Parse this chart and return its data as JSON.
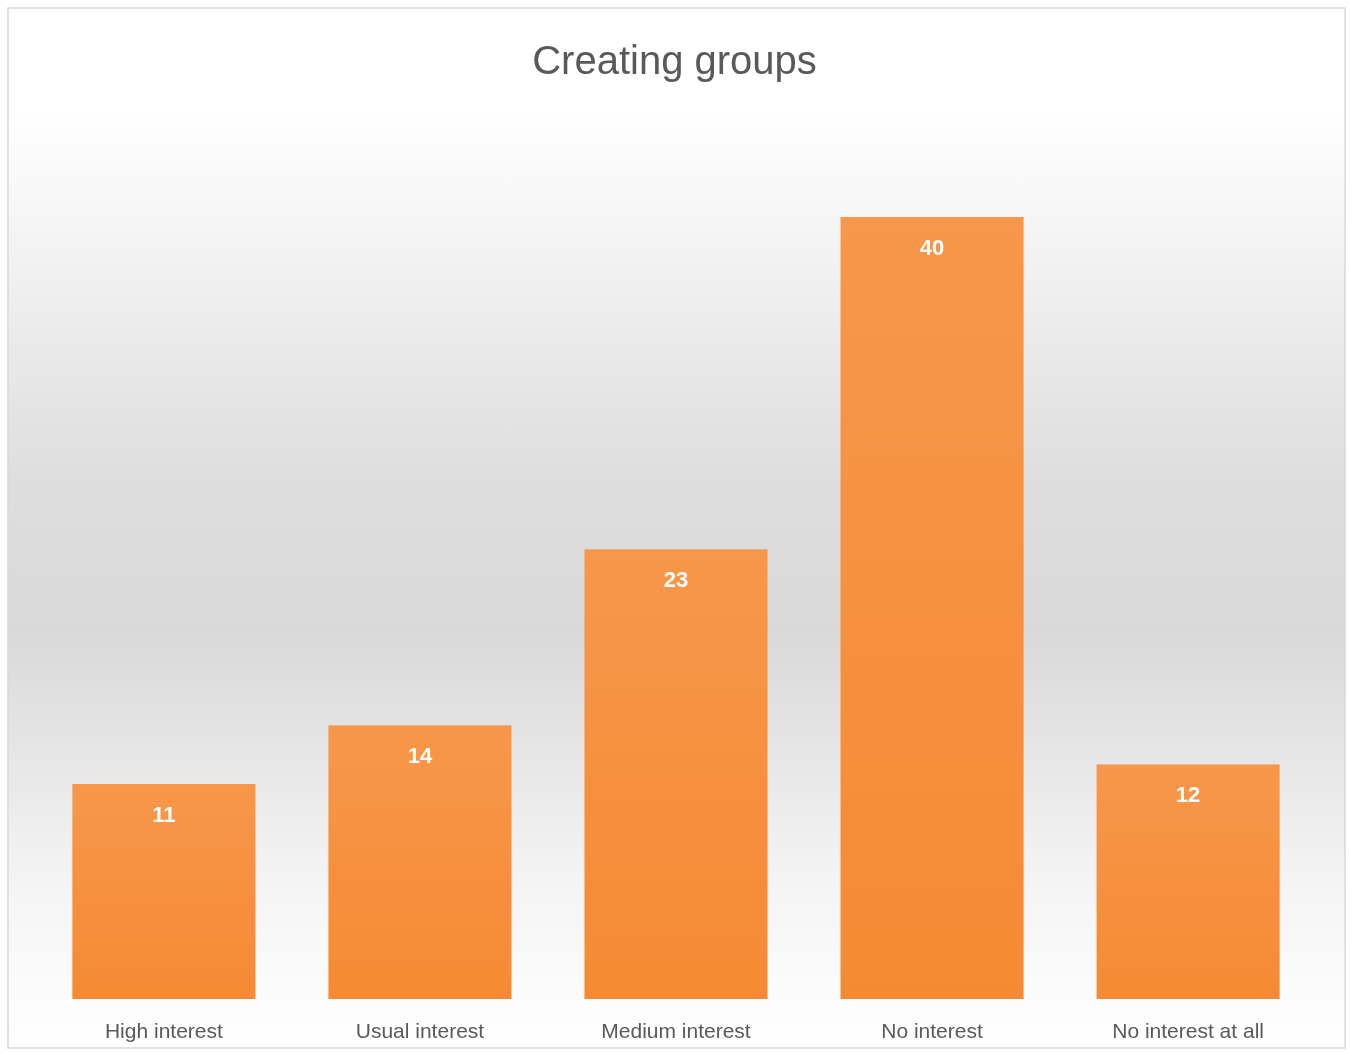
{
  "chart_data": {
    "type": "bar",
    "title": "Creating groups",
    "categories": [
      "High interest",
      "Usual interest",
      "Medium interest",
      "No interest",
      "No interest at all"
    ],
    "values": [
      11,
      14,
      23,
      40,
      12
    ],
    "color": "#f58a33",
    "data_labels": true
  }
}
